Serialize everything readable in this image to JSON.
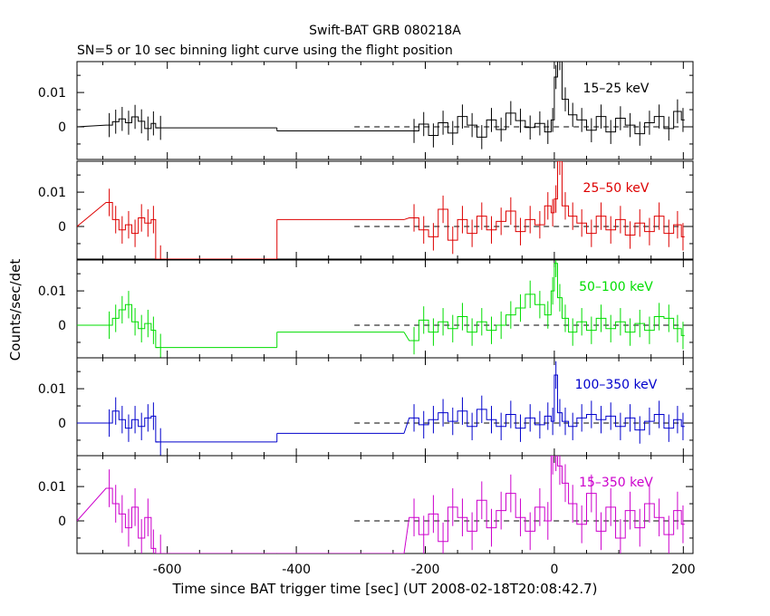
{
  "chart_data": {
    "type": "line",
    "title": "Swift-BAT GRB 080218A",
    "subtitle": "SN=5 or 10 sec binning light curve using the flight position",
    "xlabel": "Time since BAT trigger time [sec] (UT 2008-02-18T20:08:42.7)",
    "ylabel": "Counts/sec/det",
    "xlim": [
      -740,
      215
    ],
    "ylim": [
      -0.0095,
      0.019
    ],
    "x_ticks": [
      -600,
      -400,
      -200,
      0,
      200
    ],
    "x_tick_labels": [
      "-600",
      "-400",
      "-200",
      "0",
      "200"
    ],
    "y_ticks": [
      0,
      0.01
    ],
    "y_tick_labels": [
      "0",
      "0.01"
    ],
    "zero_line_from": -310,
    "panels": [
      {
        "label": "15–25 keV",
        "color": "#000000",
        "pre_bins": [
          [
            -695,
            0.0005
          ],
          [
            -685,
            0.0015
          ],
          [
            -675,
            0.0023
          ],
          [
            -665,
            0.0012
          ],
          [
            -655,
            0.0029
          ],
          [
            -645,
            0.0016
          ],
          [
            -635,
            -0.0005
          ],
          [
            -625,
            0.001
          ],
          [
            -618,
            -0.0003
          ]
        ],
        "flat_segments": [
          [
            -618,
            -430,
            -0.0003
          ],
          [
            -430,
            -233,
            -0.0012
          ]
        ],
        "post_bins": [
          [
            -225,
            -0.0012
          ],
          [
            -210,
            0.0008
          ],
          [
            -195,
            -0.0025
          ],
          [
            -180,
            0.0012
          ],
          [
            -165,
            -0.0018
          ],
          [
            -150,
            0.003
          ],
          [
            -135,
            0.0005
          ],
          [
            -120,
            -0.003
          ],
          [
            -105,
            0.002
          ],
          [
            -90,
            -0.0008
          ],
          [
            -75,
            0.004
          ],
          [
            -60,
            0.0018
          ],
          [
            -45,
            -0.0002
          ],
          [
            -30,
            0.001
          ],
          [
            -15,
            -0.0015
          ],
          [
            -5,
            0.002
          ],
          [
            0,
            0.0145
          ],
          [
            5,
            0.02
          ],
          [
            12,
            0.008
          ],
          [
            22,
            0.0035
          ],
          [
            35,
            0.002
          ],
          [
            50,
            -0.001
          ],
          [
            65,
            0.003
          ],
          [
            80,
            -0.0015
          ],
          [
            95,
            0.0025
          ],
          [
            110,
            0.0005
          ],
          [
            125,
            -0.002
          ],
          [
            140,
            0.0012
          ],
          [
            155,
            0.003
          ],
          [
            170,
            -0.0005
          ],
          [
            185,
            0.0045
          ],
          [
            197,
            0.002
          ]
        ]
      },
      {
        "label": "25–50 keV",
        "color": "#dd0000",
        "pre_bins": [
          [
            -695,
            0.007
          ],
          [
            -685,
            0.002
          ],
          [
            -675,
            -0.001
          ],
          [
            -665,
            0.0005
          ],
          [
            -655,
            -0.002
          ],
          [
            -645,
            0.0025
          ],
          [
            -635,
            0.001
          ],
          [
            -625,
            0.002
          ],
          [
            -618,
            -0.0095
          ]
        ],
        "flat_segments": [
          [
            -618,
            -430,
            -0.0095
          ],
          [
            -430,
            -233,
            0.002
          ]
        ],
        "post_bins": [
          [
            -225,
            0.0025
          ],
          [
            -210,
            -0.001
          ],
          [
            -195,
            -0.003
          ],
          [
            -180,
            0.005
          ],
          [
            -165,
            -0.004
          ],
          [
            -150,
            0.002
          ],
          [
            -135,
            -0.002
          ],
          [
            -120,
            0.003
          ],
          [
            -105,
            -0.001
          ],
          [
            -90,
            0.0015
          ],
          [
            -75,
            0.0045
          ],
          [
            -60,
            -0.0015
          ],
          [
            -45,
            0.002
          ],
          [
            -30,
            0.0005
          ],
          [
            -15,
            0.006
          ],
          [
            -5,
            0.004
          ],
          [
            0,
            0.008
          ],
          [
            5,
            0.019
          ],
          [
            12,
            0.006
          ],
          [
            22,
            0.003
          ],
          [
            35,
            0.001
          ],
          [
            50,
            -0.002
          ],
          [
            65,
            0.003
          ],
          [
            80,
            -0.001
          ],
          [
            95,
            0.002
          ],
          [
            110,
            -0.0025
          ],
          [
            125,
            0.001
          ],
          [
            140,
            -0.0015
          ],
          [
            155,
            0.003
          ],
          [
            170,
            -0.002
          ],
          [
            185,
            0.0005
          ],
          [
            197,
            -0.003
          ]
        ]
      },
      {
        "label": "50–100 keV",
        "color": "#00dd00",
        "pre_bins": [
          [
            -695,
            0.0
          ],
          [
            -685,
            0.002
          ],
          [
            -675,
            0.0045
          ],
          [
            -665,
            0.006
          ],
          [
            -655,
            0.001
          ],
          [
            -645,
            -0.001
          ],
          [
            -635,
            0.0005
          ],
          [
            -625,
            -0.0015
          ],
          [
            -618,
            -0.0065
          ]
        ],
        "flat_segments": [
          [
            -618,
            -430,
            -0.0065
          ],
          [
            -430,
            -233,
            -0.002
          ]
        ],
        "post_bins": [
          [
            -225,
            -0.0045
          ],
          [
            -210,
            0.0015
          ],
          [
            -195,
            -0.002
          ],
          [
            -180,
            0.001
          ],
          [
            -165,
            -0.001
          ],
          [
            -150,
            0.0025
          ],
          [
            -135,
            -0.002
          ],
          [
            -120,
            0.001
          ],
          [
            -105,
            -0.0015
          ],
          [
            -90,
            0.0
          ],
          [
            -75,
            0.003
          ],
          [
            -60,
            0.005
          ],
          [
            -45,
            0.009
          ],
          [
            -30,
            0.006
          ],
          [
            -15,
            0.003
          ],
          [
            -5,
            0.01
          ],
          [
            0,
            0.018
          ],
          [
            5,
            0.008
          ],
          [
            12,
            0.002
          ],
          [
            22,
            -0.002
          ],
          [
            35,
            0.001
          ],
          [
            50,
            -0.0015
          ],
          [
            65,
            0.002
          ],
          [
            80,
            -0.001
          ],
          [
            95,
            0.001
          ],
          [
            110,
            -0.002
          ],
          [
            125,
            0.0005
          ],
          [
            140,
            -0.0015
          ],
          [
            155,
            0.0025
          ],
          [
            170,
            0.002
          ],
          [
            185,
            -0.001
          ],
          [
            197,
            -0.003
          ]
        ]
      },
      {
        "label": "100–350 keV",
        "color": "#0000cc",
        "pre_bins": [
          [
            -695,
            0.0
          ],
          [
            -685,
            0.0035
          ],
          [
            -675,
            0.001
          ],
          [
            -665,
            -0.0015
          ],
          [
            -655,
            0.001
          ],
          [
            -645,
            -0.001
          ],
          [
            -635,
            0.0015
          ],
          [
            -625,
            0.002
          ],
          [
            -618,
            -0.0055
          ]
        ],
        "flat_segments": [
          [
            -618,
            -430,
            -0.0055
          ],
          [
            -430,
            -233,
            -0.003
          ]
        ],
        "post_bins": [
          [
            -225,
            0.0015
          ],
          [
            -210,
            -0.0005
          ],
          [
            -195,
            0.001
          ],
          [
            -180,
            0.003
          ],
          [
            -165,
            0.0005
          ],
          [
            -150,
            0.0035
          ],
          [
            -135,
            -0.001
          ],
          [
            -120,
            0.004
          ],
          [
            -105,
            0.001
          ],
          [
            -90,
            -0.001
          ],
          [
            -75,
            0.0025
          ],
          [
            -60,
            -0.0015
          ],
          [
            -45,
            0.0015
          ],
          [
            -30,
            -0.0005
          ],
          [
            -15,
            0.002
          ],
          [
            -5,
            0.0005
          ],
          [
            0,
            0.014
          ],
          [
            5,
            0.003
          ],
          [
            12,
            0.0005
          ],
          [
            22,
            -0.001
          ],
          [
            35,
            0.0015
          ],
          [
            50,
            0.0025
          ],
          [
            65,
            0.001
          ],
          [
            80,
            0.002
          ],
          [
            95,
            -0.001
          ],
          [
            110,
            0.0015
          ],
          [
            125,
            -0.002
          ],
          [
            140,
            0.0005
          ],
          [
            155,
            0.0025
          ],
          [
            170,
            -0.0015
          ],
          [
            185,
            0.001
          ],
          [
            197,
            -0.001
          ]
        ]
      },
      {
        "label": "15–350 keV",
        "color": "#cc00cc",
        "pre_bins": [
          [
            -695,
            0.0095
          ],
          [
            -685,
            0.005
          ],
          [
            -675,
            0.002
          ],
          [
            -665,
            -0.002
          ],
          [
            -655,
            0.004
          ],
          [
            -645,
            -0.005
          ],
          [
            -635,
            0.001
          ],
          [
            -625,
            -0.008
          ],
          [
            -618,
            -0.0095
          ]
        ],
        "flat_segments": [
          [
            -618,
            -430,
            -0.0095
          ],
          [
            -430,
            -233,
            -0.0095
          ]
        ],
        "post_bins": [
          [
            -225,
            0.001
          ],
          [
            -210,
            -0.004
          ],
          [
            -195,
            0.002
          ],
          [
            -180,
            -0.006
          ],
          [
            -165,
            0.004
          ],
          [
            -150,
            0.001
          ],
          [
            -135,
            -0.003
          ],
          [
            -120,
            0.006
          ],
          [
            -105,
            -0.002
          ],
          [
            -90,
            0.003
          ],
          [
            -75,
            0.008
          ],
          [
            -60,
            0.001
          ],
          [
            -45,
            -0.003
          ],
          [
            -30,
            0.004
          ],
          [
            -15,
            0.0
          ],
          [
            -5,
            0.019
          ],
          [
            0,
            0.02
          ],
          [
            5,
            0.016
          ],
          [
            12,
            0.011
          ],
          [
            22,
            0.005
          ],
          [
            35,
            -0.001
          ],
          [
            50,
            0.008
          ],
          [
            65,
            -0.003
          ],
          [
            80,
            0.004
          ],
          [
            95,
            -0.005
          ],
          [
            110,
            0.003
          ],
          [
            125,
            -0.002
          ],
          [
            140,
            0.005
          ],
          [
            155,
            0.001
          ],
          [
            170,
            -0.004
          ],
          [
            185,
            0.003
          ],
          [
            197,
            -0.001
          ]
        ]
      }
    ]
  }
}
